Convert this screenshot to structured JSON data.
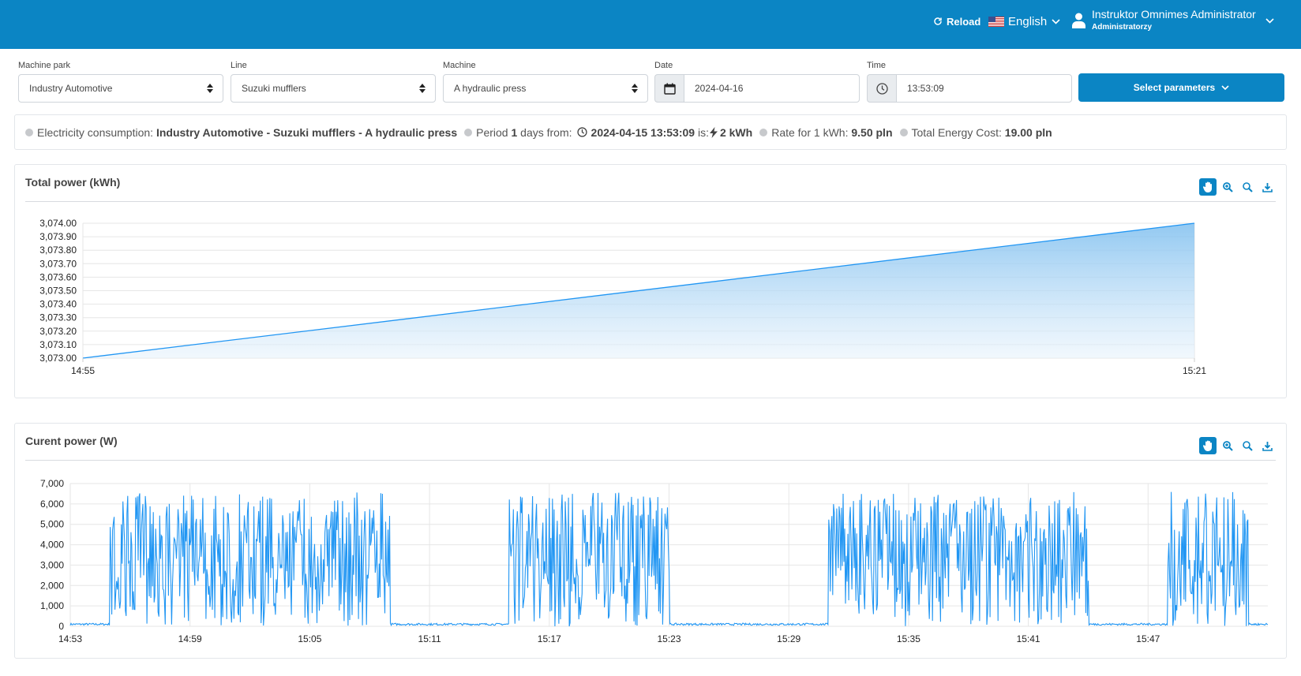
{
  "header": {
    "reload_label": "Reload",
    "language_label": "English",
    "user_name": "Instruktor Omnimes Administrator",
    "user_role": "Administratorzy",
    "background_color": "#0b85c4"
  },
  "filters": {
    "machine_park": {
      "label": "Machine park",
      "value": "Industry Automotive"
    },
    "line": {
      "label": "Line",
      "value": "Suzuki mufflers"
    },
    "machine": {
      "label": "Machine",
      "value": "A hydraulic press"
    },
    "date": {
      "label": "Date",
      "value": "2024-04-16",
      "icon": "calendar-icon"
    },
    "time": {
      "label": "Time",
      "value": "13:53:09",
      "icon": "clock-icon"
    },
    "select_parameters_label": "Select parameters"
  },
  "summary": {
    "consumption_label": "Electricity consumption:",
    "consumption_value": "Industry Automotive - Suzuki mufflers - A hydraulic press",
    "period_label": "Period",
    "period_days": "1",
    "period_unit": "days from:",
    "period_start": "2024-04-15 13:53:09",
    "period_is": "is:",
    "energy_value": "2 kWh",
    "rate_label": "Rate for 1 kWh:",
    "rate_value": "9.50 pln",
    "total_label": "Total Energy Cost:",
    "total_value": "19.00 pln"
  },
  "toolbar_icons": [
    "pan-icon",
    "zoom-in-icon",
    "zoom-reset-icon",
    "download-icon"
  ],
  "chart_data": [
    {
      "type": "area",
      "title": "Total power (kWh)",
      "x": [
        "14:55",
        "15:21"
      ],
      "series": [
        {
          "values": [
            3073.0,
            3074.0
          ]
        }
      ],
      "ylim": [
        3073.0,
        3074.0
      ],
      "y_ticks": [
        "3,073.00",
        "3,073.10",
        "3,073.20",
        "3,073.30",
        "3,073.40",
        "3,073.50",
        "3,073.60",
        "3,073.70",
        "3,073.80",
        "3,073.90",
        "3,074.00"
      ],
      "x_ticks": [
        "14:55",
        "15:21"
      ],
      "grid": true,
      "color": "#2196f3"
    },
    {
      "type": "line",
      "title": "Curent power (W)",
      "xlim": [
        "14:53",
        "15:53"
      ],
      "ylim": [
        0,
        7000
      ],
      "y_ticks": [
        "0",
        "1,000",
        "2,000",
        "3,000",
        "4,000",
        "5,000",
        "6,000",
        "7,000"
      ],
      "x_ticks": [
        "14:53",
        "14:59",
        "15:05",
        "15:11",
        "15:17",
        "15:23",
        "15:29",
        "15:35",
        "15:41",
        "15:47"
      ],
      "grid": true,
      "color": "#2196f3",
      "active_periods": [
        {
          "start": "14:55",
          "end": "15:09"
        },
        {
          "start": "15:15",
          "end": "15:23"
        },
        {
          "start": "15:31",
          "end": "15:44"
        },
        {
          "start": "15:48",
          "end": "15:52"
        }
      ],
      "idle_level": 100,
      "active_range": [
        0,
        6600
      ]
    }
  ]
}
